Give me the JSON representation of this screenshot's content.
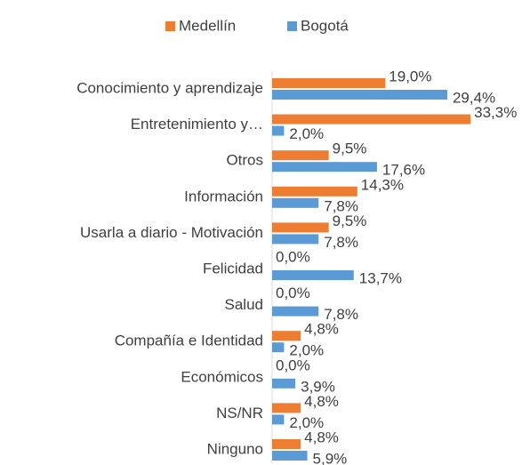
{
  "chart_data": {
    "type": "bar",
    "orientation": "horizontal",
    "categories": [
      "Conocimiento y aprendizaje",
      "Entretenimiento y…",
      "Otros",
      "Información",
      "Usarla a diario - Motivación",
      "Felicidad",
      "Salud",
      "Compañía e Identidad",
      "Económicos",
      "NS/NR",
      "Ninguno"
    ],
    "series": [
      {
        "name": "Medellín",
        "color": "#ED7D31",
        "values": [
          19.0,
          33.3,
          9.5,
          14.3,
          9.5,
          0.0,
          0.0,
          4.8,
          0.0,
          4.8,
          4.8
        ],
        "value_labels": [
          "19,0%",
          "33,3%",
          "9,5%",
          "14,3%",
          "9,5%",
          "0,0%",
          "0,0%",
          "4,8%",
          "0,0%",
          "4,8%",
          "4,8%"
        ]
      },
      {
        "name": "Bogotá",
        "color": "#5B9BD5",
        "values": [
          29.4,
          2.0,
          17.6,
          7.8,
          7.8,
          13.7,
          7.8,
          2.0,
          3.9,
          2.0,
          5.9
        ],
        "value_labels": [
          "29,4%",
          "2,0%",
          "17,6%",
          "7,8%",
          "7,8%",
          "13,7%",
          "7,8%",
          "2,0%",
          "3,9%",
          "2,0%",
          "5,9%"
        ]
      }
    ],
    "legend": "top"
  }
}
